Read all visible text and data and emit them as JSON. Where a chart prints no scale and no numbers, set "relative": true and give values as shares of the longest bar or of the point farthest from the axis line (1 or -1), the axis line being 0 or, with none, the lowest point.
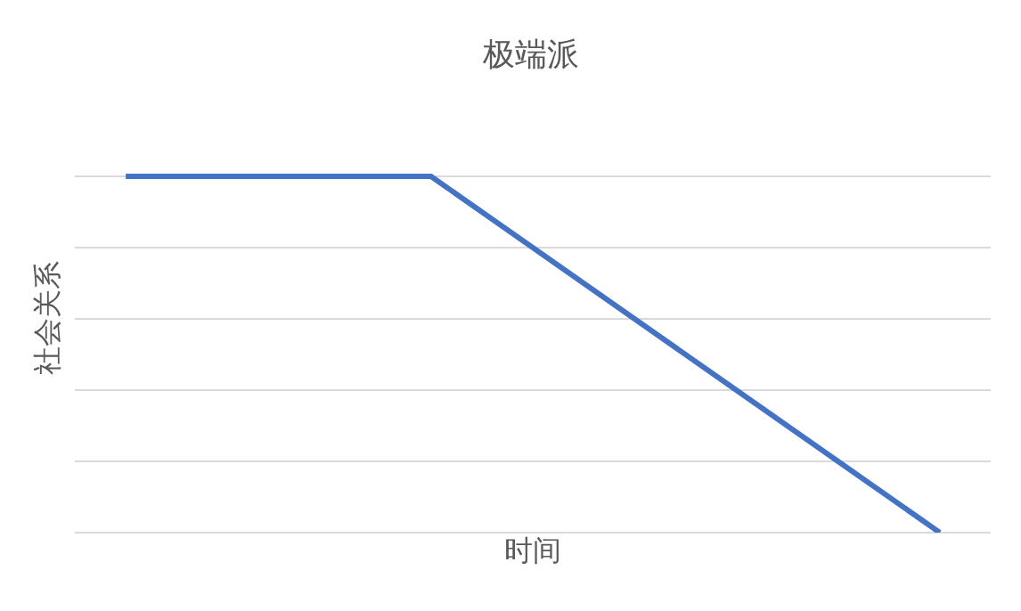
{
  "chart_data": {
    "type": "line",
    "title": "极端派",
    "xlabel": "时间",
    "ylabel": "社会关系",
    "relative": true,
    "grid": "y",
    "marker": "none",
    "line_style": "solid",
    "categories": [
      null,
      null,
      null,
      null,
      null,
      null,
      null,
      null,
      null
    ],
    "series": [
      {
        "color": "#4472c4",
        "values": [
          1,
          1,
          1,
          1,
          0.8,
          0.6,
          0.4,
          0.2,
          0
        ]
      }
    ]
  }
}
